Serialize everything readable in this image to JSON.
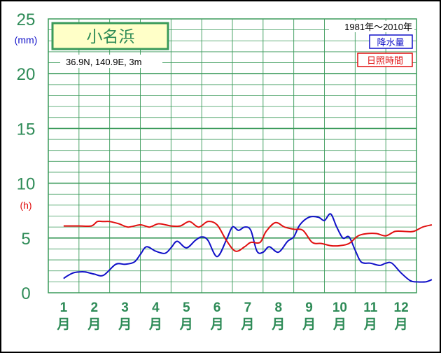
{
  "chart_data": {
    "type": "line",
    "title": "小名浜",
    "location": "36.9N, 140.9E, 3m",
    "period": "1981年〜2010年",
    "yunits": [
      "(mm)",
      "(h)"
    ],
    "ylim": [
      0,
      25
    ],
    "yticks": [
      0,
      5,
      10,
      15,
      20,
      25
    ],
    "categories": [
      "1",
      "2",
      "3",
      "4",
      "5",
      "6",
      "7",
      "8",
      "9",
      "10",
      "11",
      "12"
    ],
    "month_suffix": "月",
    "legend_position": "top-right",
    "grid": true,
    "series": [
      {
        "name": "降水量",
        "color": "#1010c8",
        "x": [
          0.5,
          0.6,
          0.8,
          1.0,
          1.2,
          1.5,
          1.8,
          2.2,
          2.5,
          2.8,
          3.0,
          3.2,
          3.5,
          3.8,
          4.0,
          4.2,
          4.5,
          4.8,
          5.0,
          5.2,
          5.5,
          5.8,
          6.0,
          6.2,
          6.4,
          6.6,
          6.8,
          7.0,
          7.2,
          7.5,
          7.8,
          8.0,
          8.2,
          8.5,
          8.8,
          9.0,
          9.2,
          9.4,
          9.6,
          9.8,
          10.0,
          10.2,
          10.5,
          10.8,
          11.0,
          11.2,
          11.5,
          11.8,
          12.0,
          12.3,
          12.5
        ],
        "values": [
          1.3,
          1.5,
          1.8,
          1.9,
          1.9,
          1.7,
          1.6,
          2.6,
          2.6,
          2.8,
          3.5,
          4.2,
          3.8,
          3.6,
          4.1,
          4.7,
          4.1,
          4.8,
          5.1,
          4.8,
          3.3,
          4.8,
          6.0,
          5.7,
          6.0,
          5.7,
          3.8,
          3.7,
          4.2,
          3.7,
          4.7,
          5.1,
          6.2,
          6.9,
          6.9,
          6.6,
          7.2,
          6.0,
          5.0,
          5.1,
          3.9,
          2.8,
          2.7,
          2.5,
          2.7,
          2.7,
          1.8,
          1.1,
          1.0,
          1.0,
          1.2
        ]
      },
      {
        "name": "日照時間",
        "color": "#e01010",
        "x": [
          0.5,
          1.0,
          1.4,
          1.6,
          1.8,
          2.0,
          2.3,
          2.6,
          3.0,
          3.3,
          3.6,
          4.0,
          4.3,
          4.6,
          4.9,
          5.2,
          5.5,
          5.8,
          6.1,
          6.4,
          6.6,
          6.9,
          7.1,
          7.4,
          7.7,
          8.0,
          8.3,
          8.6,
          8.9,
          9.2,
          9.5,
          9.8,
          10.1,
          10.4,
          10.7,
          11.0,
          11.3,
          11.6,
          11.9,
          12.2,
          12.5
        ],
        "values": [
          6.1,
          6.1,
          6.1,
          6.5,
          6.5,
          6.5,
          6.3,
          6.0,
          6.2,
          6.0,
          6.3,
          6.1,
          6.1,
          6.5,
          6.0,
          6.5,
          6.2,
          4.8,
          3.8,
          4.2,
          4.6,
          4.6,
          5.6,
          6.4,
          6.0,
          5.8,
          5.7,
          4.6,
          4.5,
          4.3,
          4.3,
          4.5,
          5.2,
          5.4,
          5.4,
          5.2,
          5.6,
          5.6,
          5.6,
          6.0,
          6.2
        ]
      }
    ]
  }
}
